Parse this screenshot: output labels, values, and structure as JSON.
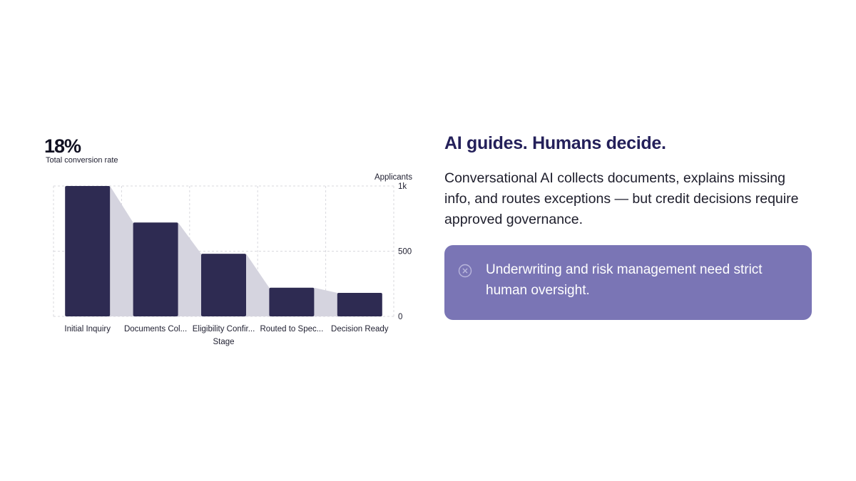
{
  "kpi": {
    "value": "18%",
    "label": "Total conversion rate"
  },
  "chart_data": {
    "type": "bar",
    "categories": [
      "Initial Inquiry",
      "Documents Col...",
      "Eligibility Confir...",
      "Routed to Spec...",
      "Decision Ready"
    ],
    "values": [
      1000,
      720,
      480,
      220,
      180
    ],
    "xlabel": "Stage",
    "ylabel": "Applicants",
    "ylim": [
      0,
      1000
    ],
    "yticks": [
      {
        "value": 0,
        "label": "0"
      },
      {
        "value": 500,
        "label": "500"
      },
      {
        "value": 1000,
        "label": "1k"
      }
    ],
    "y_axis_side": "right",
    "grid": true,
    "funnel_fill": true,
    "colors": {
      "bar": "#2e2b52",
      "funnel": "#d5d4df",
      "grid": "#d8d8de"
    }
  },
  "content": {
    "headline": "AI guides. Humans decide.",
    "body": "Conversational AI collects documents, explains missing info, and routes exceptions — but credit decisions require approved governance.",
    "callout": {
      "icon": "x-circle-icon",
      "text": "Underwriting and risk management need strict human oversight."
    }
  },
  "colors": {
    "headline": "#24205a",
    "callout_bg": "#7a75b5",
    "callout_text": "#ffffff"
  }
}
